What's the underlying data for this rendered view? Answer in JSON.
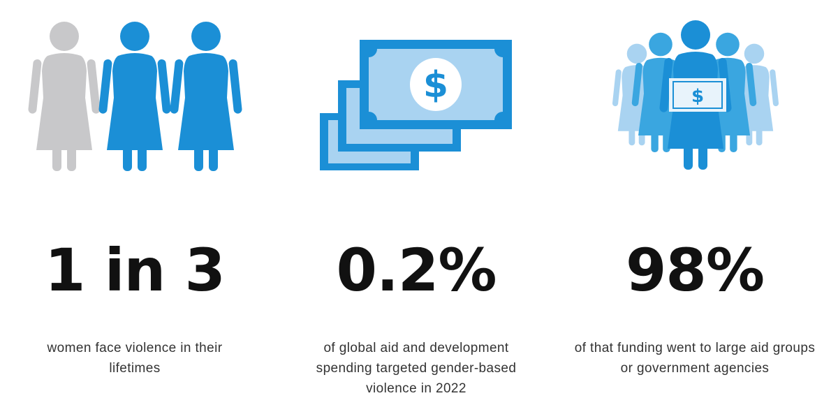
{
  "currency_symbol": "$",
  "stats": [
    {
      "value": "1 in 3",
      "description": "women face violence in their lifetimes"
    },
    {
      "value": "0.2%",
      "description": "of global aid and development spending targeted gender-based violence in 2022"
    },
    {
      "value": "98%",
      "description": "of that funding went to large aid groups or government agencies"
    }
  ]
}
